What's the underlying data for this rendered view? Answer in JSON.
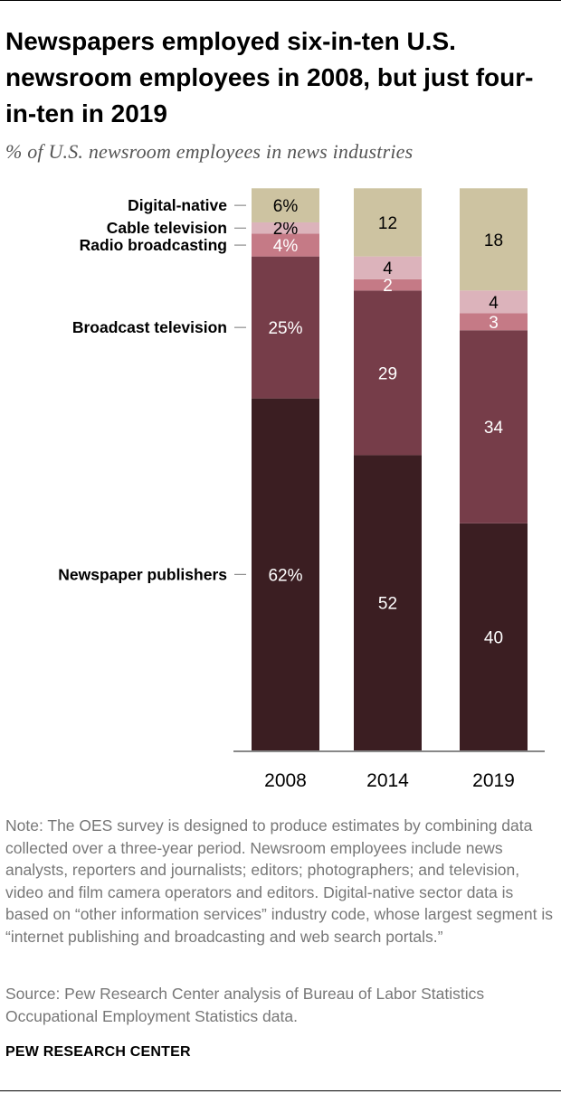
{
  "chart_data": {
    "type": "bar",
    "stacked": true,
    "percent_of_total": true,
    "title": "Newspapers employed six-in-ten U.S. newsroom employees in 2008, but just four-in-ten in 2019",
    "subtitle": "% of U.S. newsroom employees in news industries",
    "categories": [
      "2008",
      "2014",
      "2019"
    ],
    "series": [
      {
        "name": "Newspaper publishers",
        "values": [
          62,
          52,
          40
        ],
        "labels": [
          "62%",
          "52",
          "40"
        ],
        "color": "#3b1e22",
        "label_color": "#ffffff"
      },
      {
        "name": "Broadcast television",
        "values": [
          25,
          29,
          34
        ],
        "labels": [
          "25%",
          "29",
          "34"
        ],
        "color": "#763d49",
        "label_color": "#ffffff"
      },
      {
        "name": "Radio broadcasting",
        "values": [
          4,
          2,
          3
        ],
        "labels": [
          "4%",
          "2",
          "3"
        ],
        "color": "#c57a86",
        "label_color": "#ffffff"
      },
      {
        "name": "Cable television",
        "values": [
          2,
          4,
          4
        ],
        "labels": [
          "2%",
          "4",
          "4"
        ],
        "color": "#dcb3bb",
        "label_color": "#000000"
      },
      {
        "name": "Digital-native",
        "values": [
          6,
          12,
          18
        ],
        "labels": [
          "6%",
          "12",
          "18"
        ],
        "color": "#cdc3a1",
        "label_color": "#000000"
      }
    ],
    "ylim": [
      0,
      100
    ],
    "grid": false,
    "legend": "left, labels aligned to first bar segments"
  },
  "note": "Note: The OES survey is designed to produce estimates by combining data collected over a three-year period. Newsroom employees include news analysts, reporters and journalists; editors; photographers; and television, video and film camera operators and editors. Digital-native sector data is based on “other information services” industry code, whose largest segment is “internet publishing and broadcasting and web search portals.”",
  "source": "Source: Pew Research Center analysis of Bureau of Labor Statistics Occupational Employment Statistics data.",
  "brand": "PEW RESEARCH CENTER"
}
